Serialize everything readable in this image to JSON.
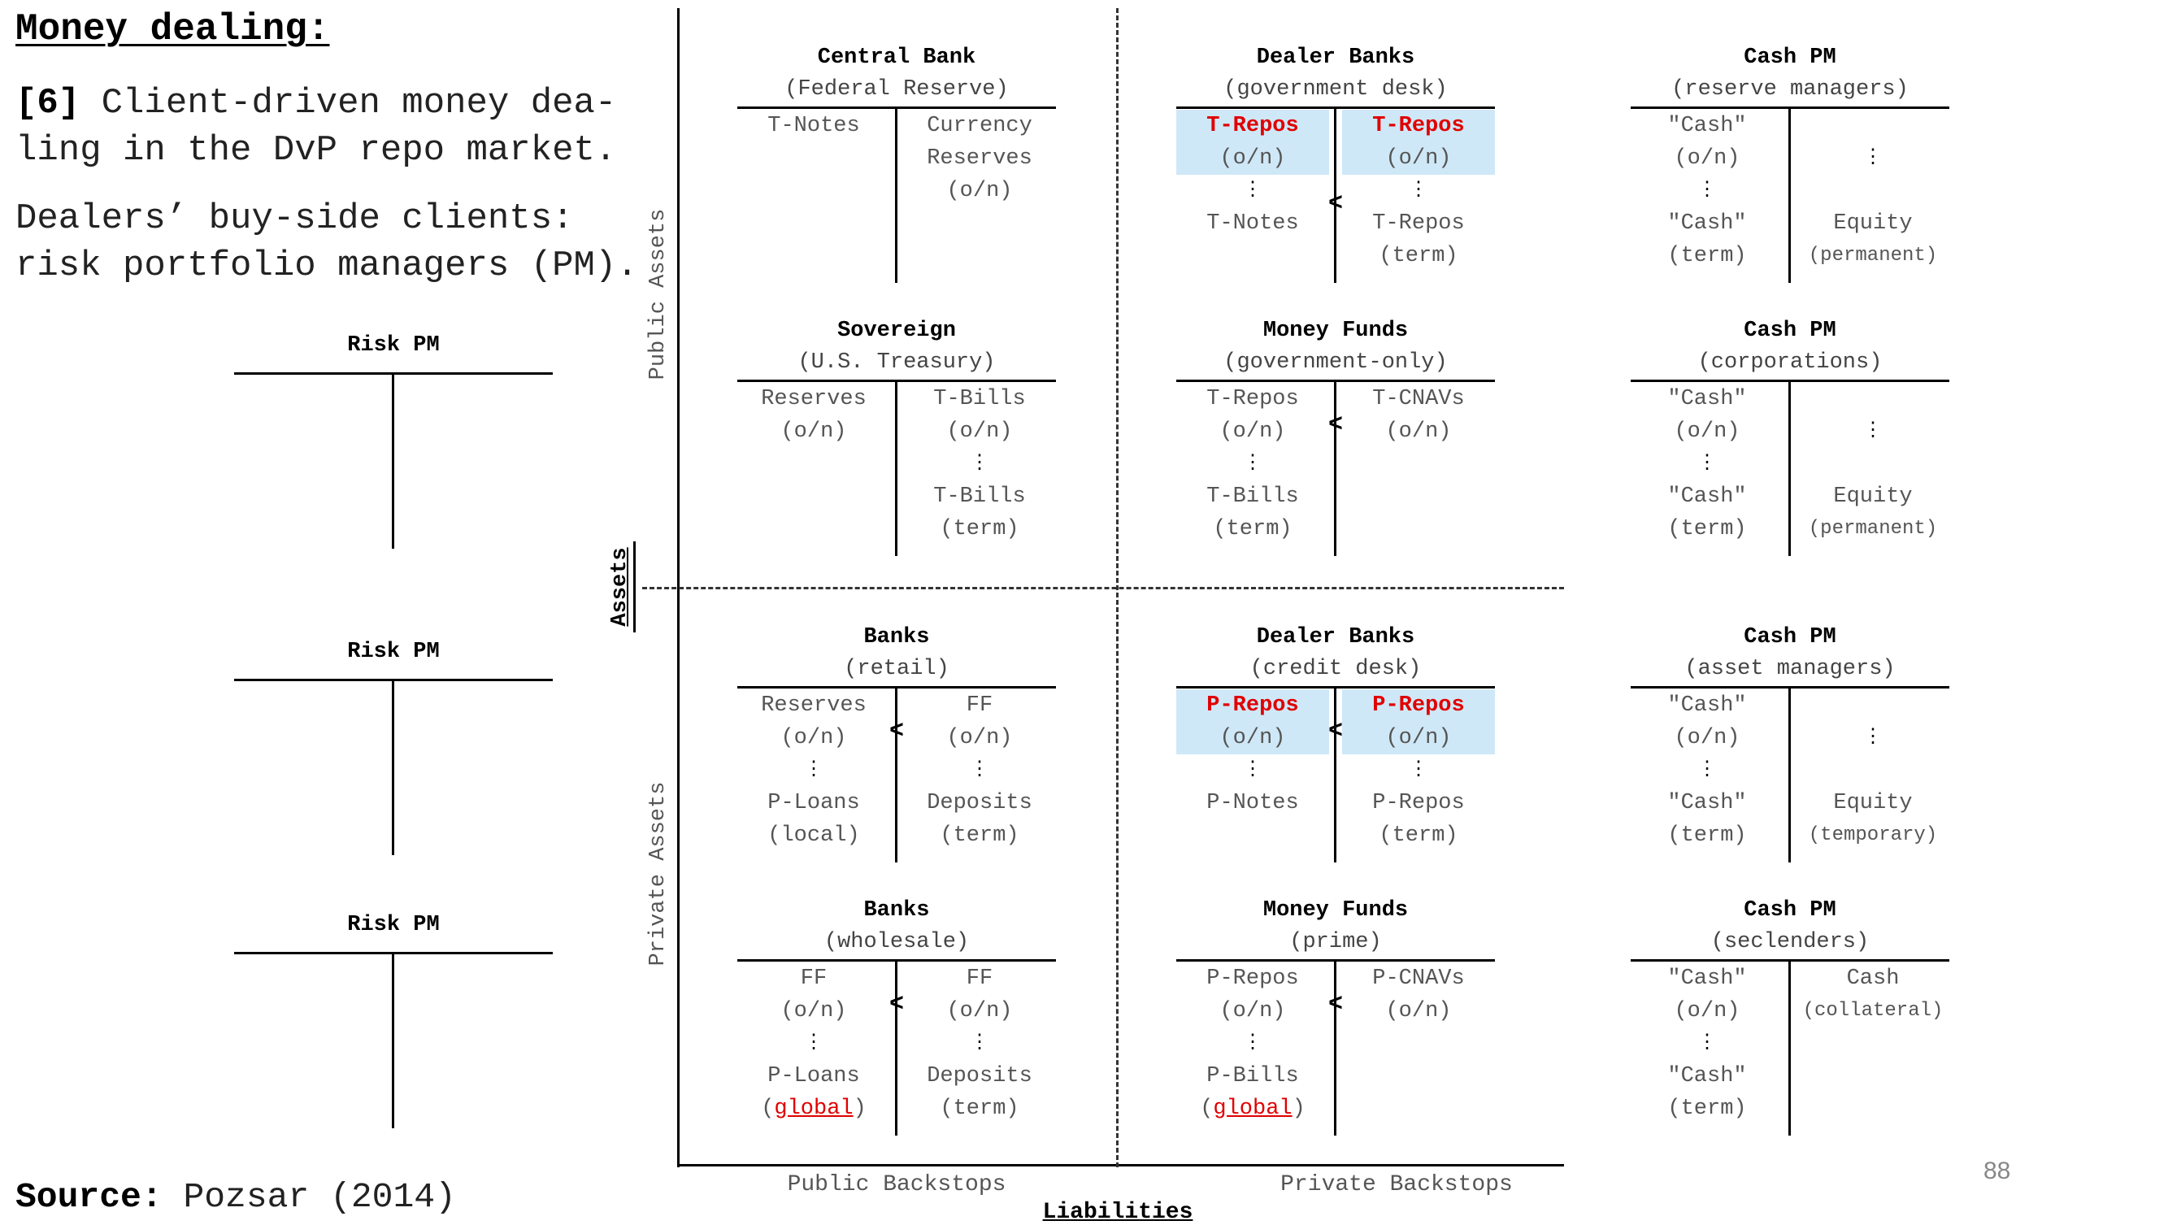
{
  "title": "Money dealing:",
  "paragraph1": {
    "tag": "[6]",
    "line1": " Client-driven money dea-",
    "line2": "ling in the DvP repo market."
  },
  "paragraph2": {
    "line1": "Dealers’ buy-side clients:",
    "line2": "risk portfolio managers (PM)."
  },
  "source": {
    "label": "Source:",
    "text": " Pozsar (2014)"
  },
  "page_number": "88",
  "axis_labels": {
    "public_assets": "Public Assets",
    "private_assets": "Private Assets",
    "assets": "Assets",
    "liabilities": "Liabilities",
    "public_backstops": "Public Backstops",
    "private_backstops": "Private Backstops"
  },
  "risk_pm": {
    "label": "Risk PM"
  },
  "accounts": {
    "central_bank": {
      "name": "Central Bank",
      "sub": "(Federal Reserve)",
      "left": [
        "T-Notes"
      ],
      "right": [
        "Currency",
        "Reserves",
        "(o/n)"
      ]
    },
    "dealer_gov": {
      "name": "Dealer Banks",
      "sub": "(government desk)",
      "left": [
        "T-Repos",
        "(o/n)",
        "⋮",
        "T-Notes"
      ],
      "right": [
        "T-Repos",
        "(o/n)",
        "⋮",
        "T-Repos",
        "(term)"
      ],
      "lt": "<"
    },
    "cash_reserve": {
      "name": "Cash PM",
      "sub": "(reserve managers)",
      "left": [
        "\"Cash\"",
        "(o/n)",
        "⋮",
        "\"Cash\"",
        "(term)"
      ],
      "right": [
        "⋮",
        "Equity",
        "(permanent)"
      ]
    },
    "sovereign": {
      "name": "Sovereign",
      "sub": "(U.S. Treasury)",
      "left": [
        "Reserves",
        "(o/n)"
      ],
      "right": [
        "T-Bills",
        "(o/n)",
        "⋮",
        "T-Bills",
        "(term)"
      ]
    },
    "mmf_gov": {
      "name": "Money Funds",
      "sub": "(government-only)",
      "left": [
        "T-Repos",
        "(o/n)",
        "⋮",
        "T-Bills",
        "(term)"
      ],
      "right": [
        "T-CNAVs",
        "(o/n)"
      ],
      "lt": "<"
    },
    "cash_corp": {
      "name": "Cash PM",
      "sub": "(corporations)",
      "left": [
        "\"Cash\"",
        "(o/n)",
        "⋮",
        "\"Cash\"",
        "(term)"
      ],
      "right": [
        "⋮",
        "Equity",
        "(permanent)"
      ]
    },
    "banks_retail": {
      "name": "Banks",
      "sub": "(retail)",
      "left": [
        "Reserves",
        "(o/n)",
        "⋮",
        "P-Loans",
        "(local)"
      ],
      "right": [
        "FF",
        "(o/n)",
        "⋮",
        "Deposits",
        "(term)"
      ],
      "lt": "<"
    },
    "dealer_credit": {
      "name": "Dealer Banks",
      "sub": "(credit desk)",
      "left": [
        "P-Repos",
        "(o/n)",
        "⋮",
        "P-Notes"
      ],
      "right": [
        "P-Repos",
        "(o/n)",
        "⋮",
        "P-Repos",
        "(term)"
      ],
      "lt": "<"
    },
    "cash_asset": {
      "name": "Cash PM",
      "sub": "(asset managers)",
      "left": [
        "\"Cash\"",
        "(o/n)",
        "⋮",
        "\"Cash\"",
        "(term)"
      ],
      "right": [
        "⋮",
        "Equity",
        "(temporary)"
      ]
    },
    "banks_wholesale": {
      "name": "Banks",
      "sub": "(wholesale)",
      "left": [
        "FF",
        "(o/n)",
        "⋮",
        "P-Loans",
        "(",
        "global",
        ")"
      ],
      "right": [
        "FF",
        "(o/n)",
        "⋮",
        "Deposits",
        "(term)"
      ],
      "lt": "<"
    },
    "mmf_prime": {
      "name": "Money Funds",
      "sub": "(prime)",
      "left": [
        "P-Repos",
        "(o/n)",
        "⋮",
        "P-Bills",
        "(",
        "global",
        ")"
      ],
      "right": [
        "P-CNAVs",
        "(o/n)"
      ],
      "lt": "<"
    },
    "cash_sec": {
      "name": "Cash PM",
      "sub": "(seclenders)",
      "left": [
        "\"Cash\"",
        "(o/n)",
        "⋮",
        "\"Cash\"",
        "(term)"
      ],
      "right": [
        "Cash",
        "(collateral)"
      ]
    }
  },
  "colors": {
    "highlight_bg": "#cfe8f7",
    "highlight_text": "#e00000"
  }
}
